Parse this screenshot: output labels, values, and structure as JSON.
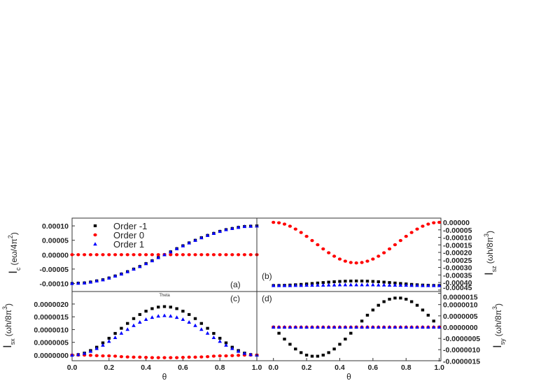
{
  "chart_data": [
    {
      "id": "a",
      "type": "scatter",
      "panel_label": "(a)",
      "ylabel": {
        "main": "I",
        "sub": "c",
        "unit": "(eω/4π",
        "sup": "2",
        "close": ")"
      },
      "xlim": [
        0,
        1
      ],
      "ylim": [
        -0.000128,
        0.000127
      ],
      "yaxis_side": "left",
      "yticks": [
        0.0001,
        5e-05,
        0,
        -5e-05,
        -0.0001
      ],
      "ytick_labels": [
        "0.00010",
        "0.00005",
        "0.00000",
        "-0.00005",
        "-0.00010"
      ],
      "legend": {
        "placement": "top-left",
        "entries": [
          "Order -1",
          "Order 0",
          "Order 1"
        ]
      },
      "series": [
        {
          "name": "Order -1",
          "values": [
            -0.0001,
            -9.9e-05,
            -9.8e-05,
            -9.5e-05,
            -9.1e-05,
            -8.7e-05,
            -8.1e-05,
            -7.4e-05,
            -6.7e-05,
            -5.9e-05,
            -5e-05,
            -4.1e-05,
            -3.1e-05,
            -2.1e-05,
            -1e-05,
            0,
            1e-05,
            2.1e-05,
            3.1e-05,
            4.1e-05,
            5e-05,
            5.9e-05,
            6.7e-05,
            7.4e-05,
            8.1e-05,
            8.7e-05,
            9.1e-05,
            9.5e-05,
            9.8e-05,
            9.9e-05,
            0.0001
          ]
        },
        {
          "name": "Order 0",
          "values": [
            0,
            0,
            0,
            0,
            0,
            0,
            0,
            0,
            0,
            0,
            0,
            0,
            0,
            0,
            0,
            0,
            0,
            0,
            0,
            0,
            0,
            0,
            0,
            0,
            0,
            0,
            0,
            0,
            0,
            0,
            0
          ]
        },
        {
          "name": "Order 1",
          "values": [
            -0.0001,
            -9.9e-05,
            -9.8e-05,
            -9.5e-05,
            -9.1e-05,
            -8.7e-05,
            -8.1e-05,
            -7.4e-05,
            -6.7e-05,
            -5.9e-05,
            -5e-05,
            -4.1e-05,
            -3.1e-05,
            -2.1e-05,
            -1e-05,
            0,
            1e-05,
            2.1e-05,
            3.1e-05,
            4.1e-05,
            5e-05,
            5.9e-05,
            6.7e-05,
            7.4e-05,
            8.1e-05,
            8.7e-05,
            9.1e-05,
            9.5e-05,
            9.8e-05,
            9.9e-05,
            0.0001
          ]
        }
      ]
    },
    {
      "id": "b",
      "type": "scatter",
      "panel_label": "(b)",
      "ylabel": {
        "main": "I",
        "sub": "sz",
        "unit": "(ωh/8π",
        "sup": "3",
        "close": ")"
      },
      "xlim": [
        -0.1,
        1.01
      ],
      "ylim": [
        -0.00046,
        2.8e-05
      ],
      "yaxis_side": "right",
      "yticks": [
        0,
        -5e-05,
        -0.0001,
        -0.00015,
        -0.0002,
        -0.00025,
        -0.0003,
        -0.00035,
        -0.0004,
        -0.00045
      ],
      "ytick_labels": [
        "0.00000",
        "-0.00005",
        "-0.00010",
        "-0.00015",
        "-0.00020",
        "-0.00025",
        "-0.00030",
        "-0.00035",
        "-0.00040",
        "-0.00045"
      ],
      "series": [
        {
          "name": "Order -1",
          "values": [
            -0.00042,
            -0.0004197,
            -0.0004187,
            -0.0004171,
            -0.000415,
            -0.0004125,
            -0.0004096,
            -0.0004066,
            -0.0004034,
            -0.0004004,
            -0.0003975,
            -0.000395,
            -0.0003929,
            -0.0003913,
            -0.0003903,
            -0.00039,
            -0.0003903,
            -0.0003913,
            -0.0003929,
            -0.000395,
            -0.0003975,
            -0.0004004,
            -0.0004034,
            -0.0004066,
            -0.0004096,
            -0.0004125,
            -0.000415,
            -0.0004171,
            -0.0004187,
            -0.0004197,
            -0.00042
          ]
        },
        {
          "name": "Order 0",
          "values": [
            0,
            -2.9e-06,
            -1.17e-05,
            -2.58e-05,
            -4.47e-05,
            -6.75e-05,
            -9.33e-05,
            -0.0001209,
            -0.0001491,
            -0.0001767,
            -0.0002025,
            -0.0002253,
            -0.0002442,
            -0.0002583,
            -0.0002671,
            -0.00027,
            -0.0002671,
            -0.0002583,
            -0.0002442,
            -0.0002253,
            -0.0002025,
            -0.0001767,
            -0.0001491,
            -0.0001209,
            -9.33e-05,
            -6.75e-05,
            -4.47e-05,
            -2.58e-05,
            -1.17e-05,
            -2.9e-06,
            0
          ]
        },
        {
          "name": "Order 1",
          "values": [
            -0.00042,
            -0.00042,
            -0.00042,
            -0.00042,
            -0.000419,
            -0.000419,
            -0.000418,
            -0.000418,
            -0.000417,
            -0.000417,
            -0.000416,
            -0.000416,
            -0.000415,
            -0.000415,
            -0.000415,
            -0.000415,
            -0.000415,
            -0.000415,
            -0.000415,
            -0.000416,
            -0.000416,
            -0.000417,
            -0.000417,
            -0.000418,
            -0.000418,
            -0.000419,
            -0.000419,
            -0.00042,
            -0.00042,
            -0.00042,
            -0.00042
          ]
        }
      ]
    },
    {
      "id": "c",
      "type": "scatter",
      "panel_label": "(c)",
      "annotation": "Theta",
      "ylabel": {
        "main": "I",
        "sub": "sx",
        "unit": "(ωh/8π",
        "sup": "3",
        "close": ")"
      },
      "xlabel": "θ",
      "xlim": [
        0,
        1
      ],
      "ylim": [
        -2.2e-07,
        2.49e-06
      ],
      "yaxis_side": "left",
      "xticks": [
        0,
        0.2,
        0.4,
        0.6,
        0.8,
        1.0
      ],
      "xtick_labels": [
        "0.0",
        "0.2",
        "0.4",
        "0.6",
        "0.8",
        "1.0"
      ],
      "yticks": [
        2e-06,
        1.5e-06,
        1e-06,
        5e-07,
        0
      ],
      "ytick_labels": [
        "0.0000020",
        "0.0000015",
        "0.0000010",
        "0.0000005",
        "0.0000000"
      ],
      "series": [
        {
          "name": "Order -1",
          "values": [
            0,
            2e-08,
            8e-08,
            1.8e-07,
            3.1e-07,
            4.8e-07,
            6.6e-07,
            8.5e-07,
            1.05e-06,
            1.24e-06,
            1.43e-06,
            1.59e-06,
            1.72e-06,
            1.82e-06,
            1.88e-06,
            1.9e-06,
            1.88e-06,
            1.82e-06,
            1.72e-06,
            1.59e-06,
            1.43e-06,
            1.24e-06,
            1.05e-06,
            8.5e-07,
            6.6e-07,
            4.8e-07,
            3.1e-07,
            1.8e-07,
            8e-08,
            2e-08,
            0
          ]
        },
        {
          "name": "Order 0",
          "values": [
            0,
            0,
            0,
            -1e-08,
            -2e-08,
            -3e-08,
            -3e-08,
            -4e-08,
            -6e-08,
            -7e-08,
            -8e-08,
            -8e-08,
            -9e-08,
            -1e-07,
            -1e-07,
            -1e-07,
            -1e-07,
            -1e-07,
            -9e-08,
            -8e-08,
            -8e-08,
            -7e-08,
            -6e-08,
            -4e-08,
            -3e-08,
            -3e-08,
            -2e-08,
            -1e-08,
            0,
            0,
            0
          ]
        },
        {
          "name": "Order 1",
          "values": [
            0,
            2e-08,
            7e-08,
            1.5e-07,
            2.6e-07,
            3.9e-07,
            5.4e-07,
            6.9e-07,
            8.6e-07,
            1.01e-06,
            1.16e-06,
            1.29e-06,
            1.4e-06,
            1.48e-06,
            1.53e-06,
            1.55e-06,
            1.53e-06,
            1.48e-06,
            1.4e-06,
            1.29e-06,
            1.16e-06,
            1.01e-06,
            8.6e-07,
            6.9e-07,
            5.4e-07,
            3.9e-07,
            2.6e-07,
            1.5e-07,
            7e-08,
            2e-08,
            0
          ]
        }
      ]
    },
    {
      "id": "d",
      "type": "scatter",
      "panel_label": "(d)",
      "ylabel": {
        "main": "I",
        "sub": "sy",
        "unit": "(ωh/8π",
        "sup": "3",
        "close": ")"
      },
      "xlabel": "θ",
      "xlim": [
        -0.1,
        1.01
      ],
      "ylim": [
        -1.49e-06,
        1.58e-06
      ],
      "yaxis_side": "right",
      "xticks": [
        0,
        0.2,
        0.4,
        0.6,
        0.8,
        1.0
      ],
      "xtick_labels": [
        "0.0",
        "0.2",
        "0.4",
        "0.6",
        "0.8",
        "1.0"
      ],
      "yticks": [
        1.5e-06,
        1e-06,
        5e-07,
        0,
        -5e-07,
        -1e-06,
        -1.5e-06
      ],
      "ytick_labels": [
        "0.0000015",
        "0.0000010",
        "0.0000005",
        "0.0000000",
        "-0.0000005",
        "-0.0000010",
        "-0.0000015"
      ],
      "series": [
        {
          "name": "Order -1",
          "values": [
            0,
            -2.7e-07,
            -5.3e-07,
            -7.6e-07,
            -9.7e-07,
            -1.13e-06,
            -1.24e-06,
            -1.29e-06,
            -1.29e-06,
            -1.24e-06,
            -1.13e-06,
            -9.7e-07,
            -7.6e-07,
            -5.3e-07,
            -2.7e-07,
            0,
            2.7e-07,
            5.3e-07,
            7.6e-07,
            9.7e-07,
            1.13e-06,
            1.24e-06,
            1.29e-06,
            1.29e-06,
            1.24e-06,
            1.13e-06,
            9.7e-07,
            7.6e-07,
            5.3e-07,
            2.7e-07,
            0
          ]
        },
        {
          "name": "Order 0",
          "values": [
            0,
            0,
            0,
            0,
            0,
            0,
            0,
            0,
            0,
            0,
            0,
            0,
            0,
            0,
            0,
            0,
            0,
            0,
            0,
            0,
            0,
            0,
            0,
            0,
            0,
            0,
            0,
            0,
            0,
            0,
            0
          ]
        },
        {
          "name": "Order 1",
          "values": [
            0,
            0,
            0,
            0,
            0,
            0,
            0,
            0,
            0,
            0,
            0,
            0,
            0,
            0,
            0,
            0,
            0,
            0,
            0,
            0,
            0,
            0,
            0,
            0,
            0,
            0,
            0,
            0,
            0,
            0,
            0
          ]
        }
      ]
    }
  ],
  "x_values": [
    0,
    0.0333,
    0.0667,
    0.1,
    0.1333,
    0.1667,
    0.2,
    0.2333,
    0.2667,
    0.3,
    0.3333,
    0.3667,
    0.4,
    0.4333,
    0.4667,
    0.5,
    0.5333,
    0.5667,
    0.6,
    0.6333,
    0.6667,
    0.7,
    0.7333,
    0.7667,
    0.8,
    0.8333,
    0.8667,
    0.9,
    0.9333,
    0.9667,
    1.0
  ],
  "colors": {
    "Order -1": "#000000",
    "Order 0": "#ff0000",
    "Order 1": "#0000ff"
  },
  "markers": {
    "Order -1": "square",
    "Order 0": "circle",
    "Order 1": "triangle"
  }
}
